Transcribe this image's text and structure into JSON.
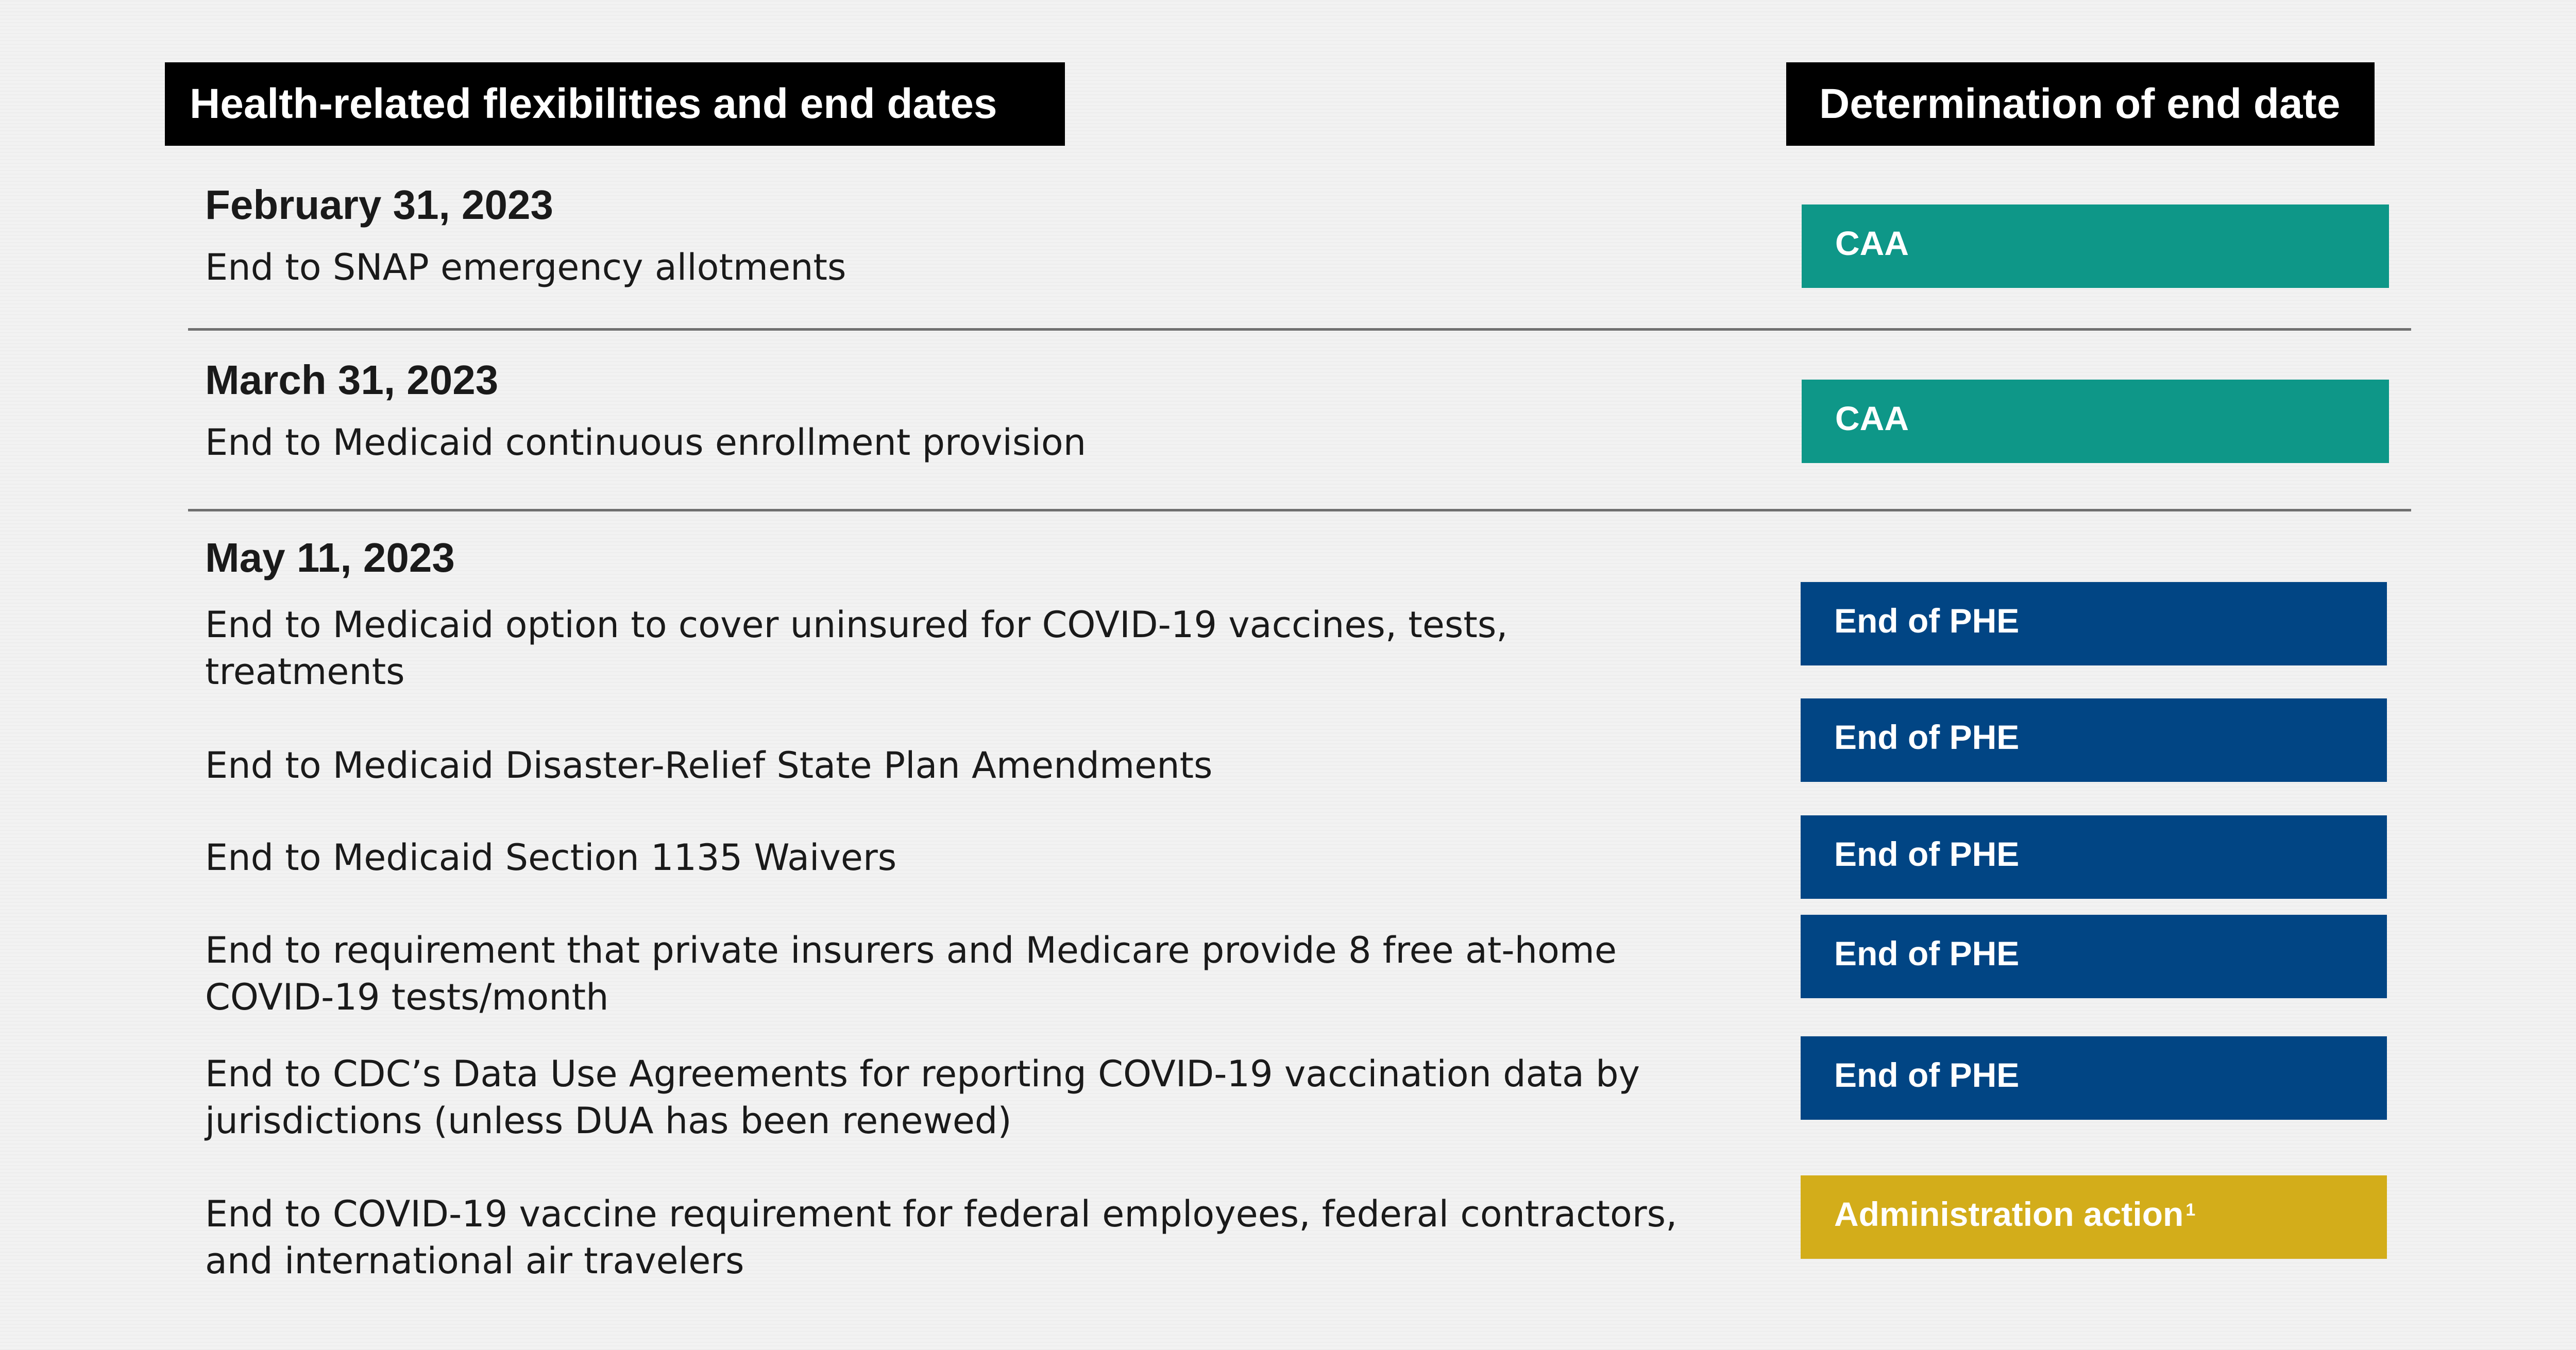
{
  "headers": {
    "left": "Health-related flexibilities and end dates",
    "right": "Determination of end date"
  },
  "sections": [
    {
      "date": "February 31, 2023",
      "items": [
        {
          "text": "End to SNAP emergency allotments",
          "tag": "CAA",
          "tag_color": "#0e9788"
        }
      ]
    },
    {
      "date": "March 31, 2023",
      "items": [
        {
          "text": "End to Medicaid continuous enrollment provision",
          "tag": "CAA",
          "tag_color": "#0e9788"
        }
      ]
    },
    {
      "date": "May 11, 2023",
      "items": [
        {
          "text": "End to Medicaid option to cover uninsured for COVID-19 vaccines, tests, treatments",
          "tag": "End of PHE",
          "tag_color": "#014584"
        },
        {
          "text": "End to Medicaid Disaster-Relief State Plan Amendments",
          "tag": "End of PHE",
          "tag_color": "#014584"
        },
        {
          "text": "End to Medicaid Section 1135 Waivers",
          "tag": "End of PHE",
          "tag_color": "#014584"
        },
        {
          "text": "End to requirement that private insurers and Medicare provide 8 free at-home COVID-19 tests/month",
          "tag": "End of PHE",
          "tag_color": "#014584"
        },
        {
          "text": "End to CDC’s Data Use Agreements for reporting COVID-19 vaccination data by jurisdictions (unless DUA has been renewed)",
          "tag": "End of PHE",
          "tag_color": "#014584"
        },
        {
          "text": "End to COVID-19 vaccine requirement for federal employees, federal contractors, and international air travelers",
          "tag": "Administration action",
          "tag_footnote": "1",
          "tag_color": "#d3ad1a"
        }
      ]
    }
  ]
}
